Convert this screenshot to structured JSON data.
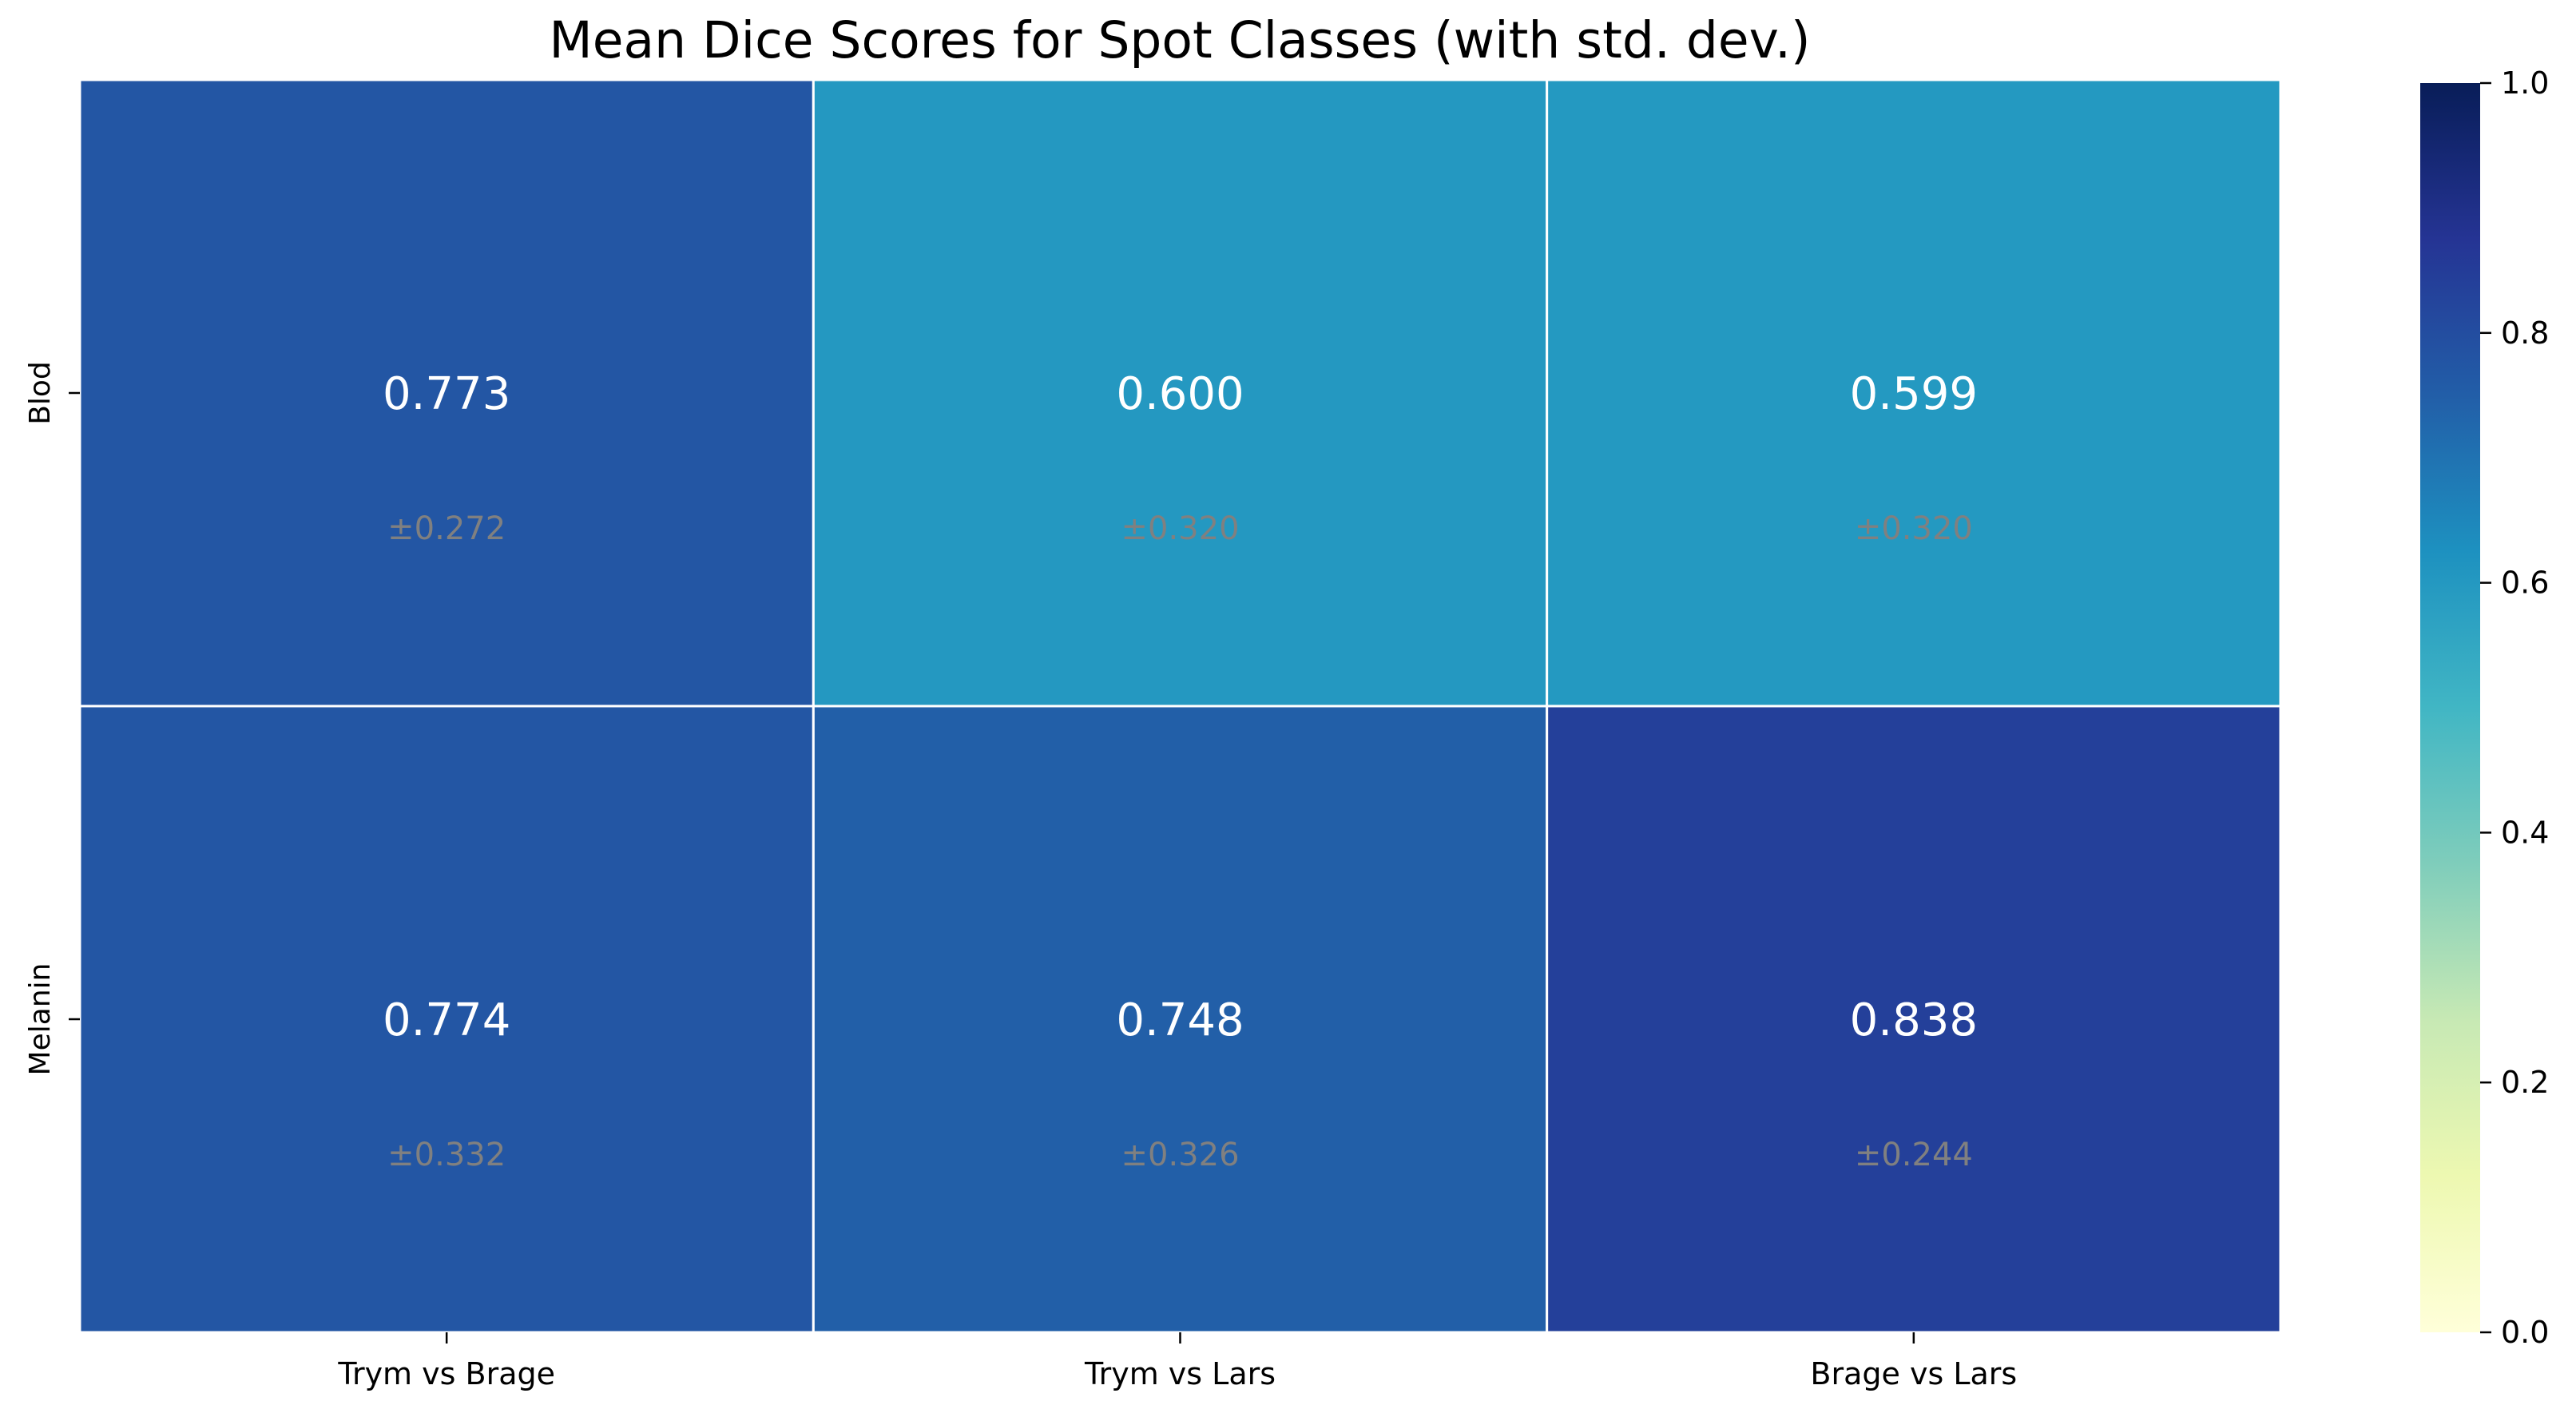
{
  "chart_data": {
    "type": "heatmap",
    "title": "Mean Dice Scores for Spot Classes (with std. dev.)",
    "rows": [
      "Blod",
      "Melanin"
    ],
    "columns": [
      "Trym vs Brage",
      "Trym vs Lars",
      "Brage vs Lars"
    ],
    "values": [
      [
        0.773,
        0.6,
        0.599
      ],
      [
        0.774,
        0.748,
        0.838
      ]
    ],
    "value_labels": [
      [
        "0.773",
        "0.600",
        "0.599"
      ],
      [
        "0.774",
        "0.748",
        "0.838"
      ]
    ],
    "std_labels": [
      [
        "±0.272",
        "±0.320",
        "±0.320"
      ],
      [
        "±0.332",
        "±0.326",
        "±0.244"
      ]
    ],
    "colorbar": {
      "range": [
        0,
        1
      ],
      "ticks": [
        "0.0",
        "0.2",
        "0.4",
        "0.6",
        "0.8",
        "1.0"
      ],
      "colormap": "YlGnBu",
      "stops": [
        "#ffffd9",
        "#edf8b1",
        "#c7e9b4",
        "#7fcdbb",
        "#41b6c4",
        "#1d91c0",
        "#225ea8",
        "#253494",
        "#081d58"
      ]
    }
  }
}
